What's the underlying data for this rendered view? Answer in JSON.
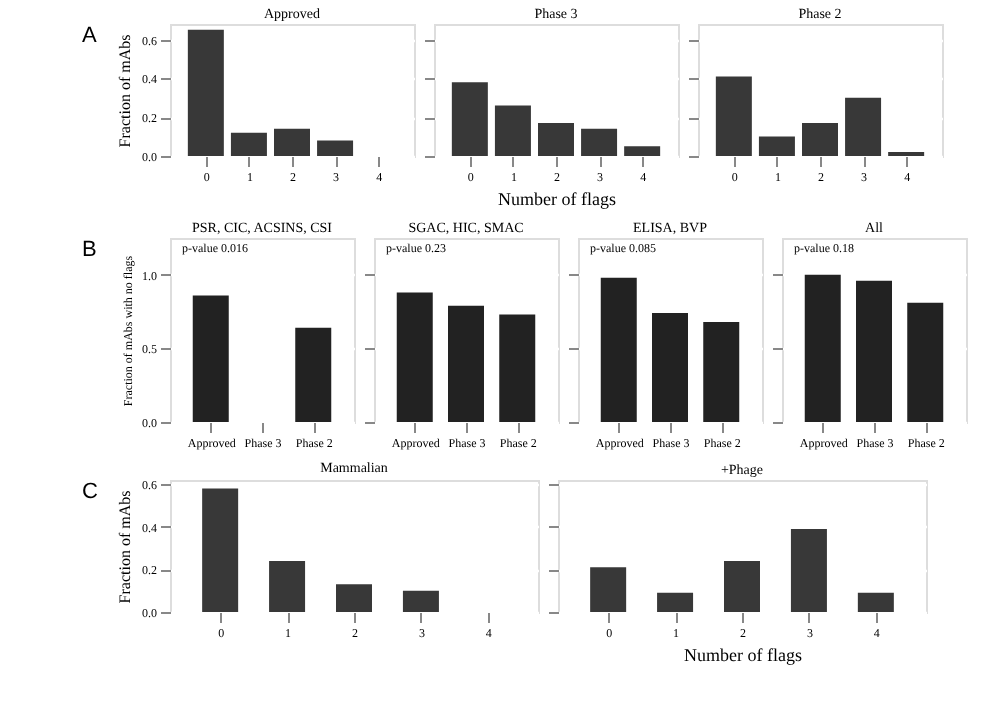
{
  "chart_data": [
    {
      "type": "bar",
      "title": "Approved",
      "annotations": [
        "A"
      ],
      "ylabel": "Fraction of mAbs",
      "categories": [
        "0",
        "1",
        "2",
        "3",
        "4"
      ],
      "values": [
        0.65,
        0.12,
        0.14,
        0.08,
        0
      ],
      "color": "#383838",
      "ylim": [
        0,
        0.68
      ],
      "yticks": [
        {
          "value": 0,
          "label": "0.0"
        },
        0.2,
        0.4,
        0.6
      ],
      "grid": "y"
    },
    {
      "type": "bar",
      "title": "Phase 3",
      "xlabel": "Number of flags",
      "categories": [
        "0",
        "1",
        "2",
        "3",
        "4"
      ],
      "values": [
        0.38,
        0.26,
        0.17,
        0.14,
        0.05
      ],
      "color": "#383838",
      "ylim": [
        0,
        0.68
      ],
      "yticks": [
        0,
        0.2,
        0.4,
        0.6
      ],
      "grid": "y",
      "tick_labels": "x"
    },
    {
      "type": "bar",
      "title": "Phase 2",
      "categories": [
        "0",
        "1",
        "2",
        "3",
        "4"
      ],
      "values": [
        0.41,
        0.1,
        0.17,
        0.3,
        0.02
      ],
      "color": "#383838",
      "ylim": [
        0,
        0.68
      ],
      "yticks": [
        0,
        0.2,
        0.4,
        0.6
      ],
      "grid": "y",
      "tick_labels": "x"
    },
    {
      "type": "bar",
      "title": "PSR, CIC, ACSINS, CSI",
      "annotations": [
        "B",
        "p-value 0.016"
      ],
      "ylabel": "Fraction of mAbs with no flags",
      "categories": [
        "Approved",
        "Phase 3",
        "Phase 2"
      ],
      "values": [
        0.86,
        null,
        0.64
      ],
      "color": "#222222",
      "ylim": [
        0,
        1.25
      ],
      "yticks": [
        {
          "value": 0,
          "label": "0.0"
        },
        0.5,
        {
          "value": 1,
          "label": "1.0"
        }
      ],
      "grid": "y"
    },
    {
      "type": "bar",
      "title": "SGAC, HIC, SMAC",
      "annotations": [
        "p-value 0.23"
      ],
      "categories": [
        "Approved",
        "Phase 3",
        "Phase 2"
      ],
      "values": [
        0.88,
        0.79,
        0.73
      ],
      "color": "#222222",
      "ylim": [
        0,
        1.25
      ],
      "yticks": [
        0,
        0.5,
        1
      ],
      "grid": "y",
      "tick_labels": "x"
    },
    {
      "type": "bar",
      "title": "ELISA, BVP",
      "annotations": [
        "p-value 0.085"
      ],
      "categories": [
        "Approved",
        "Phase 3",
        "Phase 2"
      ],
      "values": [
        0.98,
        0.74,
        0.68
      ],
      "color": "#222222",
      "ylim": [
        0,
        1.25
      ],
      "yticks": [
        0,
        0.5,
        1
      ],
      "grid": "y",
      "tick_labels": "x"
    },
    {
      "type": "bar",
      "title": "All",
      "annotations": [
        "p-value 0.18"
      ],
      "categories": [
        "Approved",
        "Phase 3",
        "Phase 2"
      ],
      "values": [
        1.0,
        0.96,
        0.81
      ],
      "color": "#222222",
      "ylim": [
        0,
        1.25
      ],
      "yticks": [
        0,
        0.5,
        1
      ],
      "grid": "y",
      "tick_labels": "x"
    },
    {
      "type": "bar",
      "title": "Mammalian",
      "annotations": [
        "C"
      ],
      "ylabel": "Fraction of mAbs",
      "categories": [
        "0",
        "1",
        "2",
        "3",
        "4"
      ],
      "values": [
        0.58,
        0.24,
        0.13,
        0.1,
        0
      ],
      "color": "#383838",
      "ylim": [
        0,
        0.62
      ],
      "yticks": [
        {
          "value": 0,
          "label": "0.0"
        },
        0.2,
        0.4,
        0.6
      ],
      "grid": "y"
    },
    {
      "type": "bar",
      "title": "+Phage",
      "xlabel": "Number of flags",
      "categories": [
        "0",
        "1",
        "2",
        "3",
        "4"
      ],
      "values": [
        0.21,
        0.09,
        0.24,
        0.39,
        0.09
      ],
      "color": "#383838",
      "ylim": [
        0,
        0.62
      ],
      "yticks": [
        0,
        0.2,
        0.4,
        0.6
      ],
      "grid": "y",
      "tick_labels": "x"
    }
  ]
}
